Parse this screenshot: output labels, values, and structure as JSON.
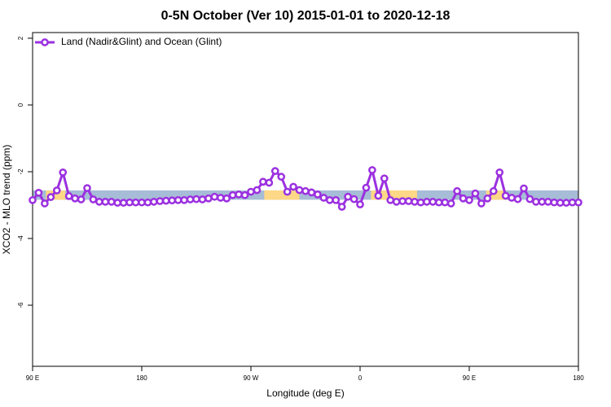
{
  "chart_data": {
    "type": "line",
    "title": "0-5N October (Ver 10)   2015-01-01 to 2020-12-18",
    "x_label": "Longitude (deg E)",
    "y_label": "XCO2 - MLO trend (ppm)",
    "xlim": [
      90,
      540
    ],
    "ylim": [
      -7.83,
      2.17
    ],
    "xticks": [
      {
        "value": 90,
        "label": "90 E"
      },
      180,
      {
        "value": 270,
        "label": "90 W"
      },
      {
        "value": 360,
        "label": "0"
      },
      {
        "value": 450,
        "label": "90 E"
      },
      {
        "value": 540,
        "label": "180"
      }
    ],
    "yticks": [
      -6,
      -4,
      -2,
      0,
      2
    ],
    "legend": "top-left",
    "bands": [
      {
        "xlim": [
          90,
          540
        ],
        "ylim": [
          -2.84,
          -2.56
        ],
        "color": "#a7bcd6"
      },
      {
        "xlim": [
          101,
          117
        ],
        "ylim": [
          -2.84,
          -2.56
        ],
        "color": "#fdd886"
      },
      {
        "xlim": [
          281,
          310
        ],
        "ylim": [
          -2.84,
          -2.56
        ],
        "color": "#fdd886"
      },
      {
        "xlim": [
          369,
          407
        ],
        "ylim": [
          -2.84,
          -2.56
        ],
        "color": "#fdd886"
      },
      {
        "xlim": [
          464,
          480
        ],
        "ylim": [
          -2.84,
          -2.56
        ],
        "color": "#fdd886"
      }
    ],
    "x": [
      90,
      95,
      100,
      105,
      110,
      115,
      120,
      125,
      130,
      135,
      140,
      145,
      150,
      155,
      160,
      165,
      170,
      175,
      180,
      185,
      190,
      195,
      200,
      205,
      210,
      215,
      220,
      225,
      230,
      235,
      240,
      245,
      250,
      255,
      260,
      265,
      270,
      275,
      280,
      285,
      290,
      295,
      300,
      305,
      310,
      315,
      320,
      325,
      330,
      335,
      340,
      345,
      350,
      355,
      360,
      365,
      370,
      375,
      380,
      385,
      390,
      395,
      400,
      405,
      410,
      415,
      420,
      425,
      430,
      435,
      440,
      445,
      450,
      455,
      460,
      465,
      470,
      475,
      480,
      485,
      490,
      495,
      500,
      505,
      510,
      515,
      520,
      525,
      530,
      535,
      540
    ],
    "series": [
      {
        "name": "Land (Nadir&Glint) and Ocean (Glint)",
        "color": "#9b30e0",
        "values": [
          -2.85,
          -2.63,
          -2.95,
          -2.76,
          -2.56,
          -2.02,
          -2.73,
          -2.8,
          -2.83,
          -2.49,
          -2.83,
          -2.9,
          -2.9,
          -2.9,
          -2.93,
          -2.93,
          -2.92,
          -2.92,
          -2.92,
          -2.92,
          -2.9,
          -2.88,
          -2.87,
          -2.86,
          -2.85,
          -2.85,
          -2.83,
          -2.82,
          -2.83,
          -2.8,
          -2.75,
          -2.78,
          -2.8,
          -2.7,
          -2.68,
          -2.7,
          -2.6,
          -2.55,
          -2.3,
          -2.33,
          -1.98,
          -2.15,
          -2.6,
          -2.45,
          -2.55,
          -2.58,
          -2.62,
          -2.68,
          -2.78,
          -2.85,
          -2.85,
          -3.05,
          -2.75,
          -2.82,
          -2.98,
          -2.48,
          -1.95,
          -2.72,
          -2.2,
          -2.85,
          -2.9,
          -2.88,
          -2.88,
          -2.9,
          -2.92,
          -2.9,
          -2.9,
          -2.92,
          -2.92,
          -2.95,
          -2.58,
          -2.8,
          -2.85,
          -2.65,
          -2.95,
          -2.8,
          -2.58,
          -2.02,
          -2.72,
          -2.78,
          -2.82,
          -2.5,
          -2.82,
          -2.9,
          -2.9,
          -2.9,
          -2.92,
          -2.93,
          -2.93,
          -2.92,
          -2.92
        ]
      }
    ]
  }
}
